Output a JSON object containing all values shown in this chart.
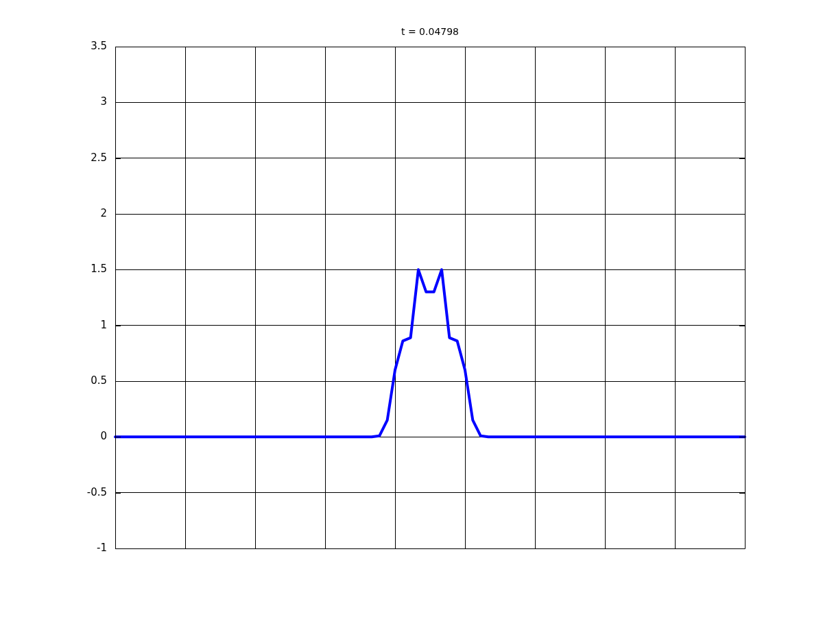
{
  "chart_data": {
    "type": "line",
    "title": "t = 0.04798",
    "categories": [
      null,
      null,
      null,
      null,
      null,
      null,
      null,
      null,
      null,
      null,
      null,
      null,
      null,
      null,
      null,
      null,
      null,
      null,
      null,
      null,
      null,
      null,
      null,
      null,
      null,
      null,
      null,
      null,
      null,
      null,
      null,
      null,
      null,
      null,
      null,
      null,
      null,
      null,
      null,
      null,
      null,
      null,
      null,
      null,
      null,
      null,
      null,
      null,
      null,
      null,
      null,
      null,
      null,
      null,
      null,
      null,
      null,
      null,
      null,
      null,
      null,
      null,
      null,
      null,
      null,
      null,
      null,
      null,
      null,
      null,
      null,
      null,
      null,
      null,
      null,
      null,
      null,
      null,
      null,
      null,
      null,
      null
    ],
    "series": [
      {
        "color": "#0000ff",
        "values": [
          0,
          0,
          0,
          0,
          0,
          0,
          0,
          0,
          0,
          0,
          0,
          0,
          0,
          0,
          0,
          0,
          0,
          0,
          0,
          0,
          0,
          0,
          0,
          0,
          0,
          0,
          0,
          0,
          0,
          0,
          0,
          0,
          0,
          0,
          0.01,
          0.15,
          0.6,
          0.86,
          0.89,
          1.5,
          1.3,
          1.3,
          1.5,
          0.89,
          0.86,
          0.6,
          0.15,
          0.01,
          0,
          0,
          0,
          0,
          0,
          0,
          0,
          0,
          0,
          0,
          0,
          0,
          0,
          0,
          0,
          0,
          0,
          0,
          0,
          0,
          0,
          0,
          0,
          0,
          0,
          0,
          0,
          0,
          0,
          0,
          0,
          0,
          0,
          0
        ]
      }
    ],
    "ylim": [
      -1,
      3.5
    ],
    "yticks": [
      -1,
      -0.5,
      0,
      0.5,
      1,
      1.5,
      2,
      2.5,
      3,
      3.5
    ],
    "tick_labels": "y",
    "grid": true,
    "legend": false,
    "marker": "none",
    "line_style": "solid"
  }
}
